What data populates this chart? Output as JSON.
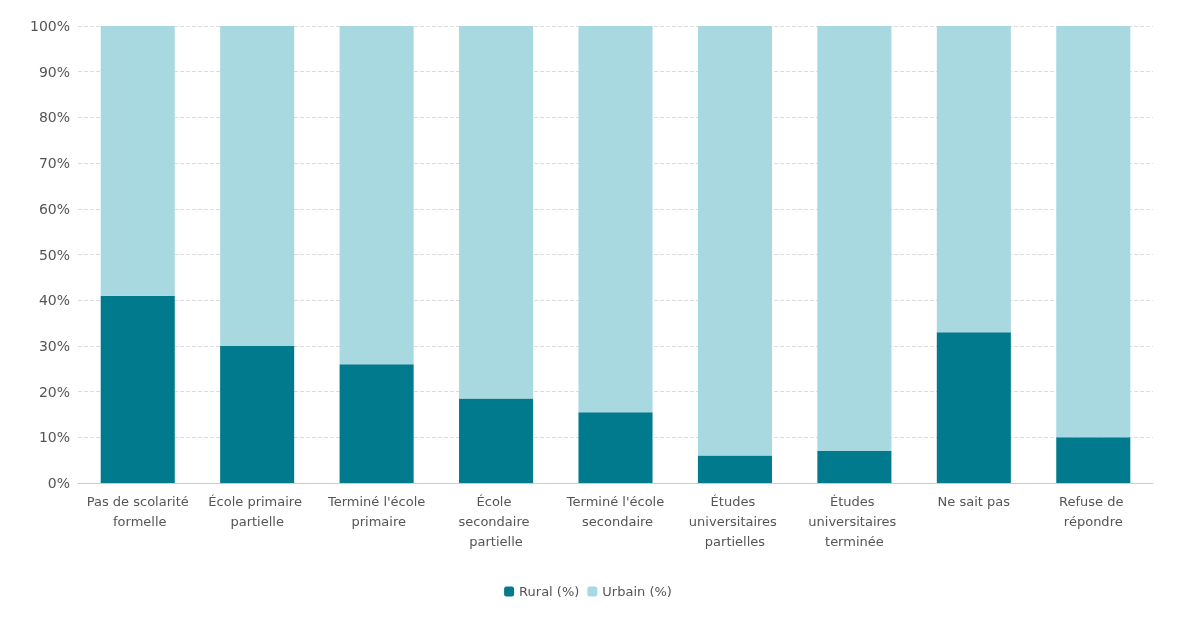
{
  "chart_data": {
    "type": "bar",
    "stacked": true,
    "categories": [
      "Pas de scolarité formelle",
      "École primaire partielle",
      "Terminé l'école primaire",
      "École secondaire partielle",
      "Terminé l'école secondaire",
      "Études universitaires partielles",
      "Études universitaires terminée",
      "Ne sait pas",
      "Refuse de répondre"
    ],
    "series": [
      {
        "name": "Rural (%)",
        "color": "#007a8c",
        "values": [
          41,
          30,
          26,
          18.5,
          15.5,
          6,
          7,
          33,
          10
        ]
      },
      {
        "name": "Urbain (%)",
        "color": "#a8d8e0",
        "values": [
          59,
          70,
          74,
          81.5,
          84.5,
          94,
          93,
          67,
          90
        ]
      }
    ],
    "ylim": [
      0,
      100
    ],
    "yticks": [
      {
        "value": 0,
        "label": "0%"
      },
      {
        "value": 10,
        "label": "10%"
      },
      {
        "value": 20,
        "label": "20%"
      },
      {
        "value": 30,
        "label": "30%"
      },
      {
        "value": 40,
        "label": "40%"
      },
      {
        "value": 50,
        "label": "50%"
      },
      {
        "value": 60,
        "label": "60%"
      },
      {
        "value": 70,
        "label": "70%"
      },
      {
        "value": 80,
        "label": "80%"
      },
      {
        "value": 90,
        "label": "90%"
      },
      {
        "value": 100,
        "label": "100%"
      }
    ],
    "grid": "y",
    "legend": "bottom"
  }
}
